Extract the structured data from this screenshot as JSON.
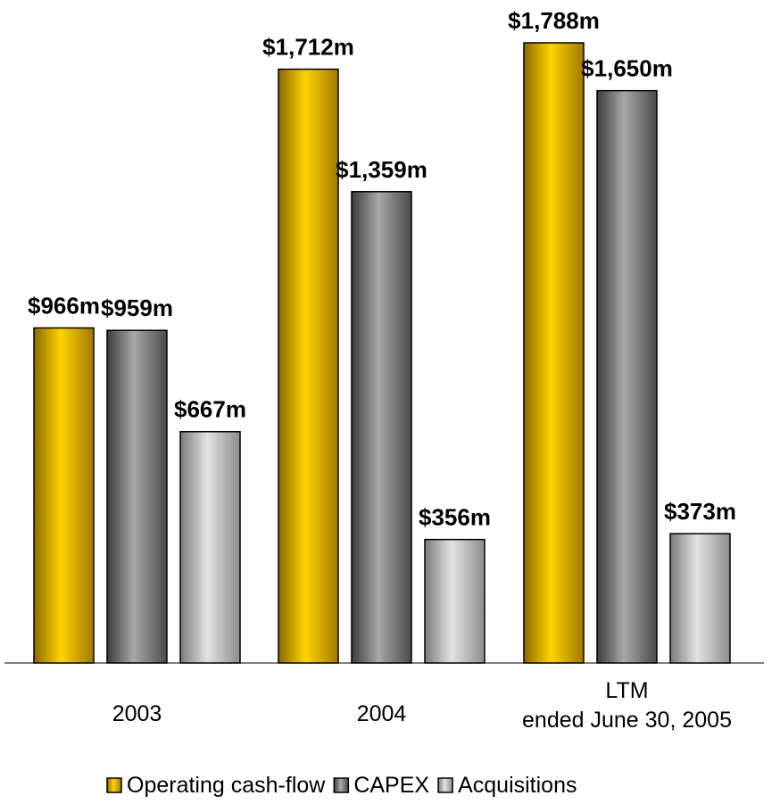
{
  "chart_data": {
    "type": "bar",
    "categories": [
      "2003",
      "2004",
      "LTM ended June 30, 2005"
    ],
    "category_lines": [
      [
        "2003"
      ],
      [
        "2004"
      ],
      [
        "LTM",
        "ended June 30, 2005"
      ]
    ],
    "series": [
      {
        "name": "Operating cash-flow",
        "values": [
          966,
          1712,
          1788
        ],
        "labels": [
          "$966m",
          "$1,712m",
          "$1,788m"
        ],
        "color": "#f2c200"
      },
      {
        "name": "CAPEX",
        "values": [
          959,
          1359,
          1650
        ],
        "labels": [
          "$959m",
          "$1,359m",
          "$1,650m"
        ],
        "color": "#707070"
      },
      {
        "name": "Acquisitions",
        "values": [
          667,
          356,
          373
        ],
        "labels": [
          "$667m",
          "$356m",
          "$373m"
        ],
        "color": "#b4b4b4"
      }
    ],
    "title": "",
    "xlabel": "",
    "ylabel": "",
    "ylim": [
      0,
      1788
    ],
    "grid": false,
    "legend_position": "bottom"
  }
}
